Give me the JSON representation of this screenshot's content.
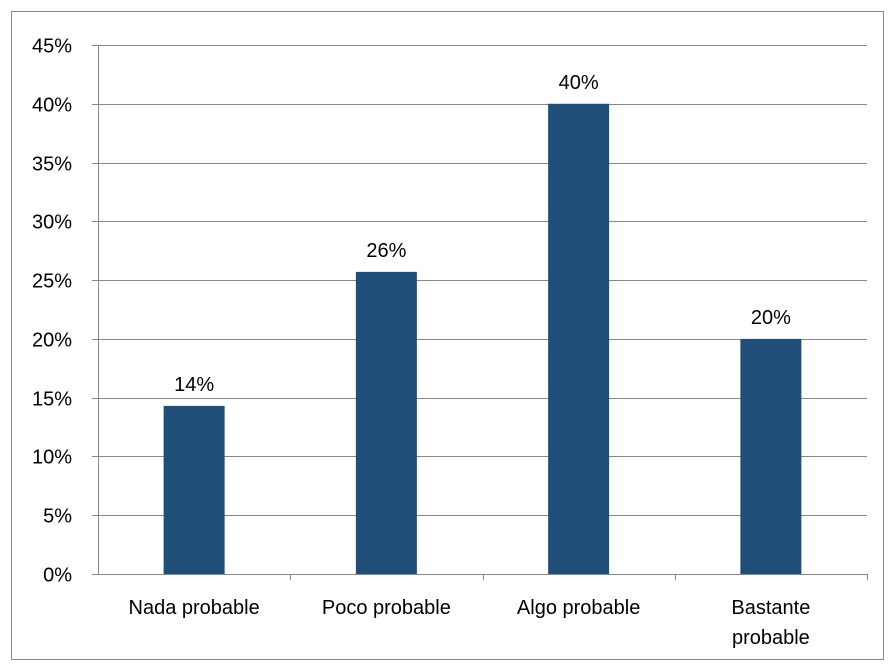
{
  "chart_data": {
    "type": "bar",
    "categories": [
      "Nada probable",
      "Poco probable",
      "Algo probable",
      "Bastante probable"
    ],
    "category_lines": [
      [
        "Nada probable"
      ],
      [
        "Poco probable"
      ],
      [
        "Algo probable"
      ],
      [
        "Bastante",
        "probable"
      ]
    ],
    "values": [
      14.3,
      25.7,
      40.0,
      20.0
    ],
    "data_labels": [
      "14%",
      "26%",
      "40%",
      "20%"
    ],
    "yticks": [
      0,
      5,
      10,
      15,
      20,
      25,
      30,
      35,
      40,
      45
    ],
    "ytick_labels": [
      "0%",
      "5%",
      "10%",
      "15%",
      "20%",
      "25%",
      "30%",
      "35%",
      "40%",
      "45%"
    ],
    "ylim": [
      0,
      45
    ],
    "grid": true,
    "legend": "none",
    "bar_color": "#1F4E79",
    "grid_color": "#878787",
    "border_color": "#878787",
    "title": "",
    "xlabel": "",
    "ylabel": ""
  }
}
